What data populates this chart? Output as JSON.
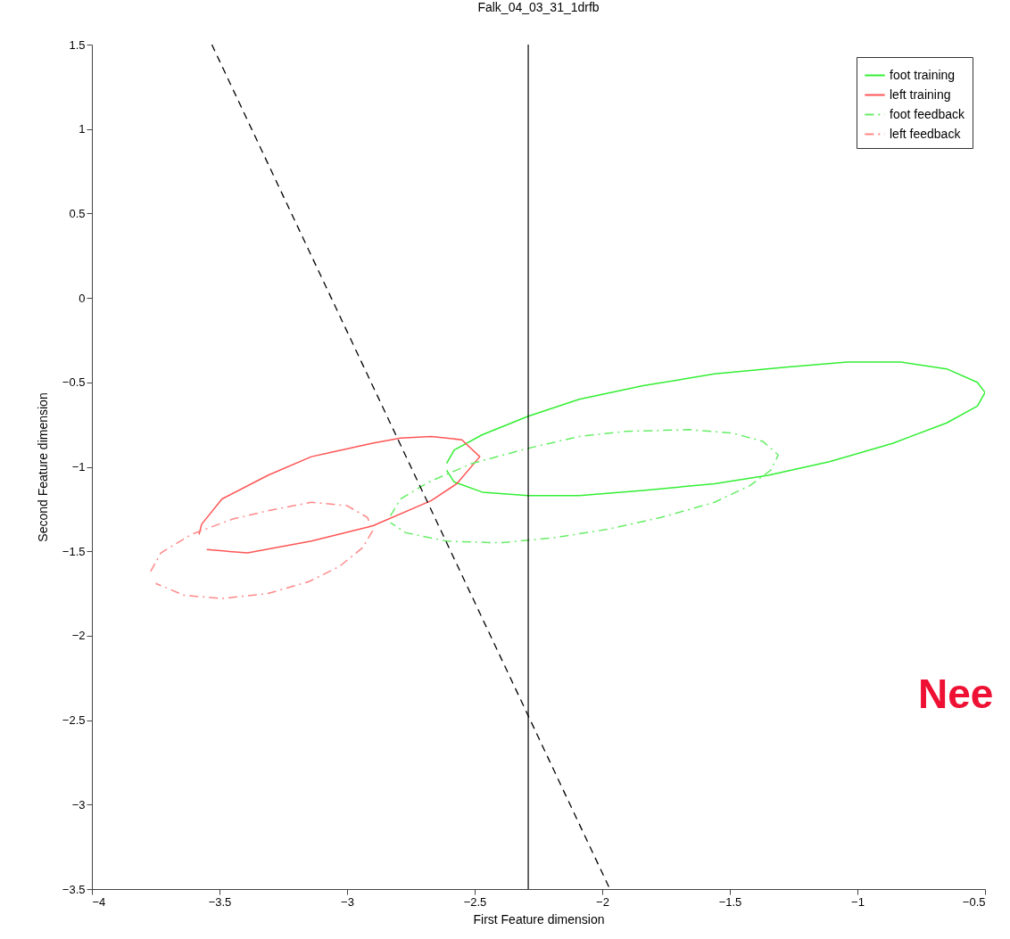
{
  "chart_data": {
    "type": "line",
    "title": "Falk_04_03_31_1drfb",
    "xlabel": "First Feature dimension",
    "ylabel": "Second Feature dimension",
    "xlim": [
      -4,
      -0.5
    ],
    "ylim": [
      -3.5,
      1.5
    ],
    "xticks": [
      -4,
      -3.5,
      -3,
      -2.5,
      -2,
      -1.5,
      -1,
      -0.5
    ],
    "yticks": [
      -3.5,
      -3,
      -2.5,
      -2,
      -1.5,
      -1,
      -0.5,
      0,
      0.5,
      1,
      1.5
    ],
    "grid": false,
    "legend": "top right",
    "series": [
      {
        "name": "foot training",
        "color": "#33ee33",
        "line_style": "solid",
        "x": [
          -2.61,
          -2.58,
          -2.47,
          -2.29,
          -2.09,
          -1.84,
          -1.56,
          -1.28,
          -1.04,
          -0.83,
          -0.65,
          -0.53,
          -0.5,
          -0.53,
          -0.65,
          -0.86,
          -1.11,
          -1.35,
          -1.56,
          -1.84,
          -2.09,
          -2.29,
          -2.47,
          -2.58,
          -2.61
        ],
        "values": [
          -0.98,
          -0.9,
          -0.81,
          -0.7,
          -0.6,
          -0.52,
          -0.45,
          -0.41,
          -0.38,
          -0.38,
          -0.42,
          -0.5,
          -0.56,
          -0.64,
          -0.74,
          -0.86,
          -0.97,
          -1.05,
          -1.1,
          -1.14,
          -1.17,
          -1.17,
          -1.15,
          -1.09,
          -1.02
        ]
      },
      {
        "name": "left training",
        "color": "#ff5555",
        "line_style": "solid",
        "x": [
          -3.58,
          -3.57,
          -3.49,
          -3.31,
          -3.14,
          -2.9,
          -2.79,
          -2.67,
          -2.55,
          -2.48,
          -2.57,
          -2.67,
          -2.9,
          -3.14,
          -3.39,
          -3.55
        ],
        "values": [
          -1.4,
          -1.34,
          -1.19,
          -1.05,
          -0.94,
          -0.86,
          -0.83,
          -0.82,
          -0.84,
          -0.94,
          -1.1,
          -1.2,
          -1.35,
          -1.44,
          -1.51,
          -1.49
        ]
      },
      {
        "name": "foot feedback",
        "color": "#66ee66",
        "line_style": "dashdot",
        "x": [
          -2.83,
          -2.79,
          -2.68,
          -2.51,
          -2.29,
          -2.09,
          -1.91,
          -1.66,
          -1.49,
          -1.37,
          -1.31,
          -1.34,
          -1.42,
          -1.56,
          -1.77,
          -1.98,
          -2.19,
          -2.4,
          -2.61,
          -2.77,
          -2.83
        ],
        "values": [
          -1.29,
          -1.19,
          -1.09,
          -0.98,
          -0.89,
          -0.82,
          -0.79,
          -0.78,
          -0.8,
          -0.85,
          -0.93,
          -1.02,
          -1.11,
          -1.21,
          -1.3,
          -1.37,
          -1.42,
          -1.45,
          -1.44,
          -1.39,
          -1.33
        ]
      },
      {
        "name": "left feedback",
        "color": "#ff8888",
        "line_style": "dashdot",
        "x": [
          -3.77,
          -3.73,
          -3.61,
          -3.45,
          -3.31,
          -3.14,
          -3.0,
          -2.92,
          -2.9,
          -2.94,
          -3.03,
          -3.15,
          -3.31,
          -3.49,
          -3.64,
          -3.75
        ],
        "values": [
          -1.62,
          -1.51,
          -1.4,
          -1.31,
          -1.26,
          -1.21,
          -1.23,
          -1.3,
          -1.38,
          -1.48,
          -1.59,
          -1.68,
          -1.75,
          -1.78,
          -1.76,
          -1.69
        ]
      },
      {
        "color": "#000000",
        "line_style": "dashed",
        "x": [
          -3.53,
          -1.97
        ],
        "values": [
          1.5,
          -3.5
        ]
      }
    ],
    "ref_lines": [
      {
        "axis": "x",
        "value": -2.29,
        "color": "#000000"
      }
    ],
    "annotations": [
      "Nee"
    ]
  }
}
